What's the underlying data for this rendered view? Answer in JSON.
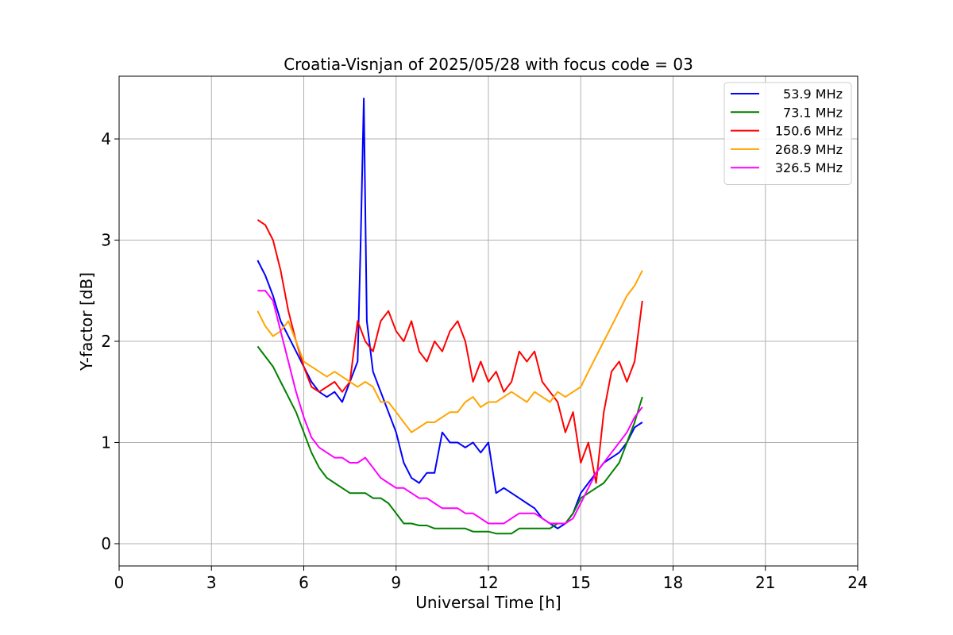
{
  "chart_data": {
    "type": "line",
    "title": "Croatia-Visnjan of 2025/05/28 with focus code = 03",
    "xlabel": "Universal Time [h]",
    "ylabel": "Y-factor [dB]",
    "xlim": [
      0,
      24
    ],
    "ylim": [
      -0.22,
      4.62
    ],
    "xticks": [
      0,
      3,
      6,
      9,
      12,
      15,
      18,
      21,
      24
    ],
    "yticks": [
      0,
      1,
      2,
      3,
      4
    ],
    "grid": true,
    "legend_position": "top-right",
    "series": [
      {
        "name": "53.9 MHz",
        "color": "#0000ff",
        "x": [
          4.5,
          4.75,
          5.0,
          5.25,
          5.5,
          5.75,
          6.0,
          6.25,
          6.5,
          6.75,
          7.0,
          7.25,
          7.5,
          7.75,
          7.85,
          7.95,
          8.05,
          8.25,
          8.5,
          8.75,
          9.0,
          9.25,
          9.5,
          9.75,
          10.0,
          10.25,
          10.5,
          10.75,
          11.0,
          11.25,
          11.5,
          11.75,
          12.0,
          12.25,
          12.5,
          12.75,
          13.0,
          13.25,
          13.5,
          13.75,
          14.0,
          14.25,
          14.5,
          14.75,
          15.0,
          15.25,
          15.5,
          15.75,
          16.0,
          16.25,
          16.5,
          16.75,
          17.0
        ],
        "values": [
          2.8,
          2.65,
          2.45,
          2.2,
          2.05,
          1.9,
          1.75,
          1.6,
          1.5,
          1.45,
          1.5,
          1.4,
          1.6,
          1.8,
          3.0,
          4.4,
          2.2,
          1.7,
          1.5,
          1.3,
          1.1,
          0.8,
          0.65,
          0.6,
          0.7,
          0.7,
          1.1,
          1.0,
          1.0,
          0.95,
          1.0,
          0.9,
          1.0,
          0.5,
          0.55,
          0.5,
          0.45,
          0.4,
          0.35,
          0.25,
          0.2,
          0.15,
          0.2,
          0.3,
          0.5,
          0.6,
          0.7,
          0.8,
          0.85,
          0.9,
          1.0,
          1.15,
          1.2
        ]
      },
      {
        "name": "73.1 MHz",
        "color": "#008000",
        "x": [
          4.5,
          4.75,
          5.0,
          5.25,
          5.5,
          5.75,
          6.0,
          6.25,
          6.5,
          6.75,
          7.0,
          7.25,
          7.5,
          7.75,
          8.0,
          8.25,
          8.5,
          8.75,
          9.0,
          9.25,
          9.5,
          9.75,
          10.0,
          10.25,
          10.5,
          10.75,
          11.0,
          11.25,
          11.5,
          11.75,
          12.0,
          12.25,
          12.5,
          12.75,
          13.0,
          13.25,
          13.5,
          13.75,
          14.0,
          14.25,
          14.5,
          14.75,
          15.0,
          15.25,
          15.5,
          15.75,
          16.0,
          16.25,
          16.5,
          16.75,
          17.0
        ],
        "values": [
          1.95,
          1.85,
          1.75,
          1.6,
          1.45,
          1.3,
          1.1,
          0.9,
          0.75,
          0.65,
          0.6,
          0.55,
          0.5,
          0.5,
          0.5,
          0.45,
          0.45,
          0.4,
          0.3,
          0.2,
          0.2,
          0.18,
          0.18,
          0.15,
          0.15,
          0.15,
          0.15,
          0.15,
          0.12,
          0.12,
          0.12,
          0.1,
          0.1,
          0.1,
          0.15,
          0.15,
          0.15,
          0.15,
          0.15,
          0.2,
          0.2,
          0.3,
          0.45,
          0.5,
          0.55,
          0.6,
          0.7,
          0.8,
          1.0,
          1.2,
          1.45
        ]
      },
      {
        "name": "150.6 MHz",
        "color": "#ff0000",
        "x": [
          4.5,
          4.75,
          5.0,
          5.25,
          5.5,
          5.75,
          6.0,
          6.25,
          6.5,
          6.75,
          7.0,
          7.25,
          7.5,
          7.75,
          8.0,
          8.25,
          8.5,
          8.75,
          9.0,
          9.25,
          9.5,
          9.75,
          10.0,
          10.25,
          10.5,
          10.75,
          11.0,
          11.25,
          11.5,
          11.75,
          12.0,
          12.25,
          12.5,
          12.75,
          13.0,
          13.25,
          13.5,
          13.75,
          14.0,
          14.25,
          14.5,
          14.75,
          15.0,
          15.25,
          15.5,
          15.75,
          16.0,
          16.25,
          16.5,
          16.75,
          17.0
        ],
        "values": [
          3.2,
          3.15,
          3.0,
          2.7,
          2.3,
          2.0,
          1.75,
          1.55,
          1.5,
          1.55,
          1.6,
          1.5,
          1.6,
          2.2,
          2.0,
          1.9,
          2.2,
          2.3,
          2.1,
          2.0,
          2.2,
          1.9,
          1.8,
          2.0,
          1.9,
          2.1,
          2.2,
          2.0,
          1.6,
          1.8,
          1.6,
          1.7,
          1.5,
          1.6,
          1.9,
          1.8,
          1.9,
          1.6,
          1.5,
          1.4,
          1.1,
          1.3,
          0.8,
          1.0,
          0.6,
          1.3,
          1.7,
          1.8,
          1.6,
          1.8,
          2.4
        ]
      },
      {
        "name": "268.9 MHz",
        "color": "#ffa500",
        "x": [
          4.5,
          4.75,
          5.0,
          5.25,
          5.5,
          5.75,
          6.0,
          6.25,
          6.5,
          6.75,
          7.0,
          7.25,
          7.5,
          7.75,
          8.0,
          8.25,
          8.5,
          8.75,
          9.0,
          9.25,
          9.5,
          9.75,
          10.0,
          10.25,
          10.5,
          10.75,
          11.0,
          11.25,
          11.5,
          11.75,
          12.0,
          12.25,
          12.5,
          12.75,
          13.0,
          13.25,
          13.5,
          13.75,
          14.0,
          14.25,
          14.5,
          14.75,
          15.0,
          15.25,
          15.5,
          15.75,
          16.0,
          16.25,
          16.5,
          16.75,
          17.0
        ],
        "values": [
          2.3,
          2.15,
          2.05,
          2.1,
          2.2,
          2.0,
          1.8,
          1.75,
          1.7,
          1.65,
          1.7,
          1.65,
          1.6,
          1.55,
          1.6,
          1.55,
          1.4,
          1.4,
          1.3,
          1.2,
          1.1,
          1.15,
          1.2,
          1.2,
          1.25,
          1.3,
          1.3,
          1.4,
          1.45,
          1.35,
          1.4,
          1.4,
          1.45,
          1.5,
          1.45,
          1.4,
          1.5,
          1.45,
          1.4,
          1.5,
          1.45,
          1.5,
          1.55,
          1.7,
          1.85,
          2.0,
          2.15,
          2.3,
          2.45,
          2.55,
          2.7
        ]
      },
      {
        "name": "326.5 MHz",
        "color": "#ff00ff",
        "x": [
          4.5,
          4.75,
          5.0,
          5.25,
          5.5,
          5.75,
          6.0,
          6.25,
          6.5,
          6.75,
          7.0,
          7.25,
          7.5,
          7.75,
          8.0,
          8.25,
          8.5,
          8.75,
          9.0,
          9.25,
          9.5,
          9.75,
          10.0,
          10.25,
          10.5,
          10.75,
          11.0,
          11.25,
          11.5,
          11.75,
          12.0,
          12.25,
          12.5,
          12.75,
          13.0,
          13.25,
          13.5,
          13.75,
          14.0,
          14.25,
          14.5,
          14.75,
          15.0,
          15.25,
          15.5,
          15.75,
          16.0,
          16.25,
          16.5,
          16.75,
          17.0
        ],
        "values": [
          2.5,
          2.5,
          2.4,
          2.1,
          1.8,
          1.5,
          1.25,
          1.05,
          0.95,
          0.9,
          0.85,
          0.85,
          0.8,
          0.8,
          0.85,
          0.75,
          0.65,
          0.6,
          0.55,
          0.55,
          0.5,
          0.45,
          0.45,
          0.4,
          0.35,
          0.35,
          0.35,
          0.3,
          0.3,
          0.25,
          0.2,
          0.2,
          0.2,
          0.25,
          0.3,
          0.3,
          0.3,
          0.25,
          0.2,
          0.2,
          0.2,
          0.25,
          0.4,
          0.55,
          0.7,
          0.8,
          0.9,
          1.0,
          1.1,
          1.25,
          1.35
        ]
      }
    ]
  }
}
